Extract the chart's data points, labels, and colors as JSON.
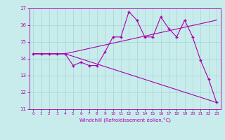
{
  "xlabel": "Windchill (Refroidissement éolien,°C)",
  "background_color": "#c8ecec",
  "line_color": "#aa00aa",
  "xlim": [
    -0.5,
    23.5
  ],
  "ylim": [
    11,
    17
  ],
  "xticks": [
    0,
    1,
    2,
    3,
    4,
    5,
    6,
    7,
    8,
    9,
    10,
    11,
    12,
    13,
    14,
    15,
    16,
    17,
    18,
    19,
    20,
    21,
    22,
    23
  ],
  "yticks": [
    11,
    12,
    13,
    14,
    15,
    16,
    17
  ],
  "series1_x": [
    0,
    1,
    2,
    3,
    4,
    5,
    6,
    7,
    8,
    9,
    10,
    11,
    12,
    13,
    14,
    15,
    16,
    17,
    18,
    19,
    20,
    21,
    22,
    23
  ],
  "series1_y": [
    14.3,
    14.3,
    14.3,
    14.3,
    14.3,
    13.6,
    13.8,
    13.6,
    13.6,
    14.4,
    15.3,
    15.3,
    16.8,
    16.3,
    15.3,
    15.3,
    16.5,
    15.8,
    15.3,
    16.3,
    15.3,
    13.9,
    12.8,
    11.4
  ],
  "series2_x": [
    0,
    4,
    23
  ],
  "series2_y": [
    14.3,
    14.3,
    16.3
  ],
  "series3_x": [
    0,
    4,
    23
  ],
  "series3_y": [
    14.3,
    14.3,
    11.4
  ]
}
